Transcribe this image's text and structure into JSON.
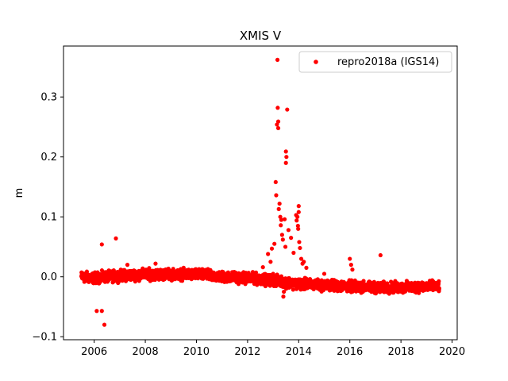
{
  "chart_data": {
    "type": "scatter",
    "title": "XMIS V",
    "xlabel": "",
    "ylabel": "m",
    "xlim": [
      2004.8,
      2020.2
    ],
    "ylim": [
      -0.105,
      0.385
    ],
    "xticks": [
      2006,
      2008,
      2010,
      2012,
      2014,
      2016,
      2018,
      2020
    ],
    "xtick_labels": [
      "2006",
      "2008",
      "2010",
      "2012",
      "2014",
      "2016",
      "2018",
      "2020"
    ],
    "yticks": [
      -0.1,
      0.0,
      0.1,
      0.2,
      0.3
    ],
    "ytick_labels": [
      "−0.1",
      "0.0",
      "0.1",
      "0.2",
      "0.3"
    ],
    "grid": false,
    "legend_position": "upper-right",
    "series": [
      {
        "name": "repro2018a (IGS14)",
        "color": "#ff0000",
        "marker": "circle",
        "band": [
          [
            2005.5,
            0.0
          ],
          [
            2006.0,
            -0.002
          ],
          [
            2007.0,
            0.002
          ],
          [
            2008.0,
            0.004
          ],
          [
            2009.0,
            0.004
          ],
          [
            2010.0,
            0.004
          ],
          [
            2011.0,
            0.0
          ],
          [
            2012.0,
            -0.002
          ],
          [
            2013.0,
            -0.006
          ],
          [
            2014.0,
            -0.012
          ],
          [
            2015.0,
            -0.014
          ],
          [
            2016.0,
            -0.016
          ],
          [
            2017.0,
            -0.018
          ],
          [
            2018.0,
            -0.018
          ],
          [
            2019.0,
            -0.016
          ],
          [
            2019.5,
            -0.016
          ]
        ],
        "band_noise": 0.008,
        "x": [
          2006.1,
          2006.3,
          2006.3,
          2006.4,
          2006.85,
          2007.3,
          2008.4,
          2012.6,
          2012.8,
          2012.9,
          2012.95,
          2013.0,
          2013.05,
          2013.1,
          2013.12,
          2013.15,
          2013.17,
          2013.18,
          2013.2,
          2013.2,
          2013.22,
          2013.25,
          2013.28,
          2013.3,
          2013.32,
          2013.35,
          2013.38,
          2013.4,
          2013.42,
          2013.45,
          2013.48,
          2013.5,
          2013.5,
          2013.52,
          2013.55,
          2013.6,
          2013.7,
          2013.8,
          2013.9,
          2013.92,
          2013.95,
          2013.97,
          2013.98,
          2014.0,
          2014.0,
          2014.02,
          2014.05,
          2014.1,
          2014.15,
          2014.2,
          2014.3,
          2015.0,
          2016.0,
          2016.05,
          2016.1,
          2017.2
        ],
        "y": [
          -0.057,
          -0.057,
          0.054,
          -0.08,
          0.064,
          0.02,
          0.022,
          0.016,
          0.038,
          0.025,
          0.047,
          0.005,
          0.055,
          0.158,
          0.136,
          0.254,
          0.362,
          0.282,
          0.259,
          0.248,
          0.113,
          0.122,
          0.1,
          0.086,
          0.095,
          0.07,
          0.062,
          -0.033,
          -0.025,
          0.096,
          0.05,
          0.19,
          0.209,
          0.2,
          0.279,
          0.078,
          0.065,
          0.04,
          0.103,
          0.094,
          0.1,
          0.085,
          0.08,
          0.118,
          0.108,
          0.058,
          0.048,
          0.03,
          0.022,
          0.025,
          0.015,
          0.005,
          0.03,
          0.02,
          0.012,
          0.036
        ]
      }
    ]
  }
}
